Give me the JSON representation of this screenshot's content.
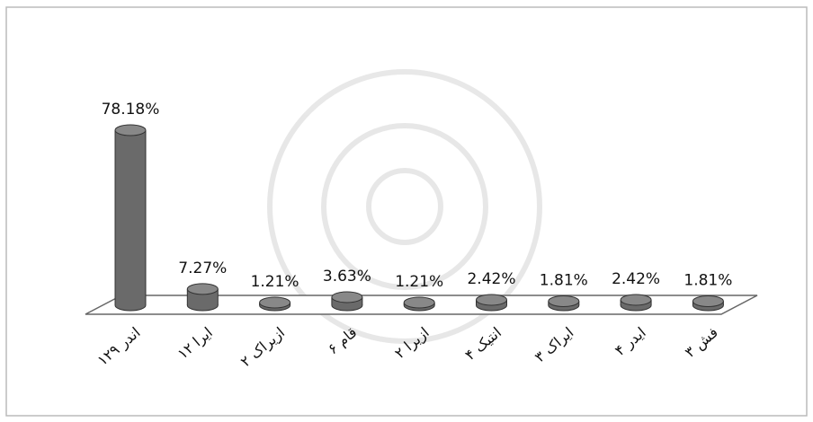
{
  "chart_data": {
    "type": "bar3d",
    "categories": [
      "اندر ۱۲۹",
      "ایرا ۱۲",
      "ازیراک ۲",
      "قام ۶",
      "ازیرا ۲",
      "انتیک ۴",
      "ایراک ۳",
      "ایدر ۴",
      "فش ۳"
    ],
    "values": [
      78.18,
      7.27,
      1.21,
      3.63,
      1.21,
      2.42,
      1.81,
      2.42,
      1.81
    ],
    "value_labels": [
      "78.18%",
      "7.27%",
      "1.21%",
      "3.63%",
      "1.21%",
      "2.42%",
      "1.81%",
      "2.42%",
      "1.81%"
    ],
    "color": "#6a6a6a"
  }
}
